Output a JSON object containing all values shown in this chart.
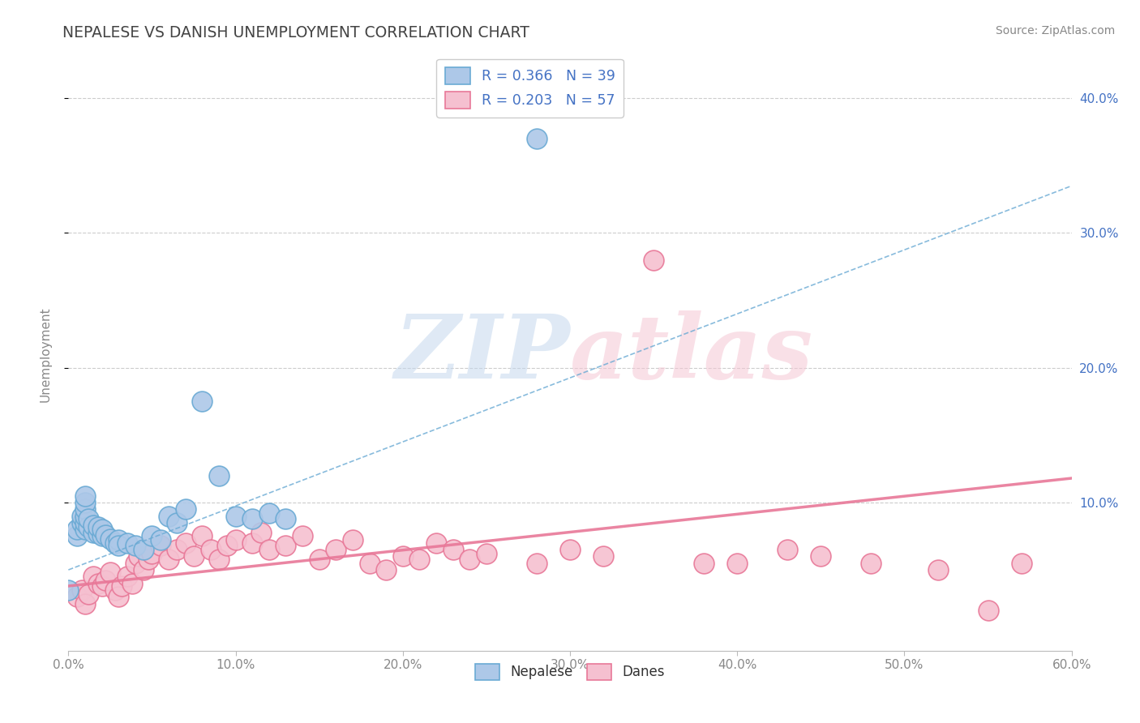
{
  "title": "NEPALESE VS DANISH UNEMPLOYMENT CORRELATION CHART",
  "source": "Source: ZipAtlas.com",
  "xlim": [
    0.0,
    0.6
  ],
  "ylim": [
    -0.01,
    0.43
  ],
  "nepalese_color": "#adc8e8",
  "nepalese_edge": "#6aaad4",
  "danes_color": "#f5c0d0",
  "danes_edge": "#e87898",
  "nepalese_R": 0.366,
  "nepalese_N": 39,
  "danes_R": 0.203,
  "danes_N": 57,
  "legend_text_color": "#4472c4",
  "watermark_blue": "#c5d8ee",
  "watermark_pink": "#f5c8d5",
  "background_color": "#ffffff",
  "grid_color": "#cccccc",
  "title_color": "#444444",
  "tick_color_left": "#888888",
  "tick_color_right": "#4472c4",
  "nepalese_x": [
    0.0,
    0.005,
    0.005,
    0.008,
    0.008,
    0.01,
    0.01,
    0.01,
    0.01,
    0.01,
    0.01,
    0.012,
    0.012,
    0.015,
    0.015,
    0.018,
    0.018,
    0.02,
    0.02,
    0.022,
    0.025,
    0.028,
    0.03,
    0.03,
    0.035,
    0.04,
    0.045,
    0.05,
    0.055,
    0.06,
    0.065,
    0.07,
    0.08,
    0.09,
    0.1,
    0.11,
    0.12,
    0.13,
    0.28
  ],
  "nepalese_y": [
    0.035,
    0.075,
    0.08,
    0.085,
    0.09,
    0.08,
    0.085,
    0.09,
    0.095,
    0.1,
    0.105,
    0.082,
    0.088,
    0.078,
    0.083,
    0.077,
    0.082,
    0.075,
    0.08,
    0.076,
    0.073,
    0.07,
    0.072,
    0.068,
    0.07,
    0.068,
    0.065,
    0.075,
    0.072,
    0.09,
    0.085,
    0.095,
    0.175,
    0.12,
    0.09,
    0.088,
    0.092,
    0.088,
    0.37
  ],
  "danes_x": [
    0.005,
    0.008,
    0.01,
    0.012,
    0.015,
    0.018,
    0.02,
    0.022,
    0.025,
    0.028,
    0.03,
    0.032,
    0.035,
    0.038,
    0.04,
    0.042,
    0.045,
    0.048,
    0.05,
    0.055,
    0.06,
    0.065,
    0.07,
    0.075,
    0.08,
    0.085,
    0.09,
    0.095,
    0.1,
    0.11,
    0.115,
    0.12,
    0.13,
    0.14,
    0.15,
    0.16,
    0.17,
    0.18,
    0.19,
    0.2,
    0.21,
    0.22,
    0.23,
    0.24,
    0.25,
    0.28,
    0.3,
    0.32,
    0.35,
    0.38,
    0.4,
    0.43,
    0.45,
    0.48,
    0.52,
    0.55,
    0.57
  ],
  "danes_y": [
    0.03,
    0.035,
    0.025,
    0.032,
    0.045,
    0.04,
    0.038,
    0.042,
    0.048,
    0.035,
    0.03,
    0.038,
    0.045,
    0.04,
    0.055,
    0.06,
    0.05,
    0.058,
    0.062,
    0.068,
    0.058,
    0.065,
    0.07,
    0.06,
    0.075,
    0.065,
    0.058,
    0.068,
    0.072,
    0.07,
    0.078,
    0.065,
    0.068,
    0.075,
    0.058,
    0.065,
    0.072,
    0.055,
    0.05,
    0.06,
    0.058,
    0.07,
    0.065,
    0.058,
    0.062,
    0.055,
    0.065,
    0.06,
    0.28,
    0.055,
    0.055,
    0.065,
    0.06,
    0.055,
    0.05,
    0.02,
    0.055
  ],
  "nep_trend_x0": 0.0,
  "nep_trend_y0": 0.05,
  "nep_trend_x1": 0.6,
  "nep_trend_y1": 0.335,
  "dan_trend_x0": 0.0,
  "dan_trend_y0": 0.038,
  "dan_trend_x1": 0.6,
  "dan_trend_y1": 0.118
}
